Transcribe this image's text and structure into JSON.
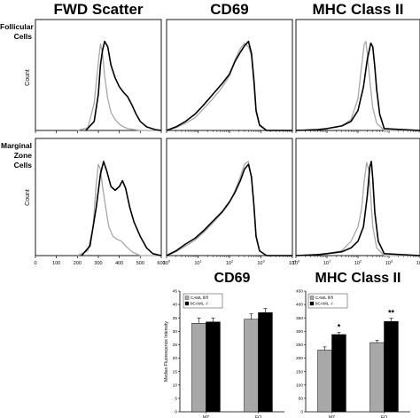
{
  "columns": [
    "FWD Scatter",
    "CD69",
    "MHC Class II"
  ],
  "rows": [
    {
      "label_lines": [
        "Follicular",
        "Cells"
      ]
    },
    {
      "label_lines": [
        "Marginal",
        "Zone",
        "Cells"
      ]
    }
  ],
  "count_label": "Count",
  "bar_titles": [
    "CD69",
    "MHC Class II"
  ],
  "colors": {
    "wt": "#a8a8a8",
    "ko": "#000000"
  },
  "chart_data": [
    {
      "type": "line",
      "panel": "follicular-fwd",
      "x_scale": "linear",
      "xlim": [
        0,
        600
      ],
      "x_ticks": [
        "0",
        "100",
        "200",
        "300",
        "400",
        "500",
        "600"
      ],
      "series": [
        {
          "color": "#a8a8a8",
          "x": [
            200,
            250,
            280,
            300,
            310,
            320,
            330,
            345,
            360,
            380,
            400,
            420,
            440,
            470,
            500,
            600
          ],
          "y": [
            0,
            0.03,
            0.3,
            0.75,
            0.95,
            0.85,
            0.6,
            0.35,
            0.2,
            0.12,
            0.07,
            0.04,
            0.02,
            0.01,
            0,
            0
          ]
        },
        {
          "color": "#000000",
          "x": [
            240,
            280,
            300,
            310,
            320,
            330,
            345,
            360,
            380,
            400,
            420,
            440,
            460,
            480,
            500,
            530,
            570,
            600
          ],
          "y": [
            0,
            0.1,
            0.4,
            0.72,
            0.88,
            0.98,
            0.92,
            0.72,
            0.58,
            0.48,
            0.42,
            0.37,
            0.28,
            0.18,
            0.1,
            0.04,
            0.01,
            0
          ]
        }
      ]
    },
    {
      "type": "line",
      "panel": "follicular-cd69",
      "x_scale": "log",
      "xlim": [
        1,
        10000
      ],
      "x_ticks": [
        "10^0",
        "10^1",
        "10^2",
        "10^3",
        "10^4"
      ],
      "series": [
        {
          "color": "#a8a8a8",
          "x": [
            1,
            2,
            4,
            8,
            15,
            30,
            60,
            100,
            150,
            220,
            300,
            400,
            500,
            600,
            700,
            900,
            1500,
            10000
          ],
          "y": [
            0,
            0.03,
            0.08,
            0.14,
            0.24,
            0.35,
            0.48,
            0.6,
            0.78,
            0.9,
            0.96,
            0.92,
            0.82,
            0.5,
            0.2,
            0.05,
            0,
            0
          ]
        },
        {
          "color": "#000000",
          "x": [
            1,
            2,
            4,
            8,
            15,
            30,
            60,
            100,
            150,
            220,
            300,
            400,
            500,
            600,
            700,
            900,
            1500,
            10000
          ],
          "y": [
            0,
            0.04,
            0.1,
            0.18,
            0.28,
            0.4,
            0.52,
            0.62,
            0.76,
            0.86,
            0.93,
            0.98,
            0.85,
            0.55,
            0.22,
            0.06,
            0,
            0
          ]
        }
      ]
    },
    {
      "type": "line",
      "panel": "follicular-mhc",
      "x_scale": "log",
      "xlim": [
        1,
        10000
      ],
      "x_ticks": [
        "10^0",
        "10^1",
        "10^2",
        "10^3",
        "10^4"
      ],
      "series": [
        {
          "color": "#a8a8a8",
          "x": [
            1,
            5,
            10,
            30,
            60,
            100,
            130,
            160,
            180,
            200,
            250,
            300,
            400,
            700,
            10000
          ],
          "y": [
            0,
            0.01,
            0.02,
            0.05,
            0.12,
            0.35,
            0.7,
            0.95,
            0.98,
            0.85,
            0.5,
            0.25,
            0.08,
            0,
            0
          ]
        },
        {
          "color": "#000000",
          "x": [
            1,
            5,
            10,
            30,
            60,
            100,
            150,
            200,
            260,
            300,
            350,
            400,
            500,
            700,
            10000
          ],
          "y": [
            0,
            0.01,
            0.02,
            0.05,
            0.1,
            0.22,
            0.48,
            0.78,
            0.96,
            0.92,
            0.7,
            0.45,
            0.18,
            0.02,
            0
          ]
        }
      ]
    },
    {
      "type": "line",
      "panel": "mz-fwd",
      "x_scale": "linear",
      "xlim": [
        0,
        600
      ],
      "x_ticks": [
        "0",
        "100",
        "200",
        "300",
        "400",
        "500",
        "600"
      ],
      "series": [
        {
          "color": "#a8a8a8",
          "x": [
            200,
            250,
            275,
            290,
            300,
            310,
            320,
            335,
            350,
            370,
            390,
            410,
            430,
            460,
            500,
            600
          ],
          "y": [
            0,
            0.05,
            0.3,
            0.75,
            0.95,
            0.9,
            0.72,
            0.5,
            0.3,
            0.2,
            0.17,
            0.15,
            0.1,
            0.04,
            0,
            0
          ]
        },
        {
          "color": "#000000",
          "x": [
            220,
            260,
            290,
            310,
            325,
            340,
            360,
            380,
            400,
            415,
            430,
            450,
            470,
            500,
            530,
            560,
            600
          ],
          "y": [
            0,
            0.1,
            0.5,
            0.85,
            0.98,
            0.88,
            0.72,
            0.68,
            0.72,
            0.78,
            0.7,
            0.5,
            0.35,
            0.2,
            0.08,
            0.02,
            0
          ]
        }
      ]
    },
    {
      "type": "line",
      "panel": "mz-cd69",
      "x_scale": "log",
      "xlim": [
        1,
        10000
      ],
      "x_ticks": [
        "10^0",
        "10^1",
        "10^2",
        "10^3",
        "10^4"
      ],
      "series": [
        {
          "color": "#a8a8a8",
          "x": [
            1,
            2,
            4,
            8,
            15,
            30,
            60,
            100,
            150,
            220,
            300,
            400,
            500,
            600,
            700,
            900,
            1500,
            10000
          ],
          "y": [
            0,
            0.04,
            0.1,
            0.16,
            0.24,
            0.34,
            0.45,
            0.55,
            0.68,
            0.82,
            0.95,
            0.98,
            0.8,
            0.5,
            0.2,
            0.05,
            0,
            0
          ]
        },
        {
          "color": "#000000",
          "x": [
            1,
            2,
            4,
            8,
            15,
            30,
            60,
            100,
            150,
            220,
            300,
            400,
            500,
            600,
            700,
            900,
            1500,
            10000
          ],
          "y": [
            0,
            0.05,
            0.12,
            0.18,
            0.26,
            0.36,
            0.46,
            0.56,
            0.66,
            0.78,
            0.9,
            0.95,
            0.82,
            0.52,
            0.2,
            0.05,
            0,
            0
          ]
        }
      ]
    },
    {
      "type": "line",
      "panel": "mz-mhc",
      "x_scale": "log",
      "xlim": [
        1,
        10000
      ],
      "x_ticks": [
        "10^0",
        "10^1",
        "10^2",
        "10^3",
        "10^4"
      ],
      "series": [
        {
          "color": "#a8a8a8",
          "x": [
            1,
            5,
            10,
            30,
            60,
            100,
            130,
            160,
            190,
            220,
            260,
            300,
            400,
            700,
            10000
          ],
          "y": [
            0,
            0.01,
            0.02,
            0.05,
            0.15,
            0.3,
            0.48,
            0.78,
            0.97,
            0.9,
            0.6,
            0.3,
            0.08,
            0,
            0
          ]
        },
        {
          "color": "#000000",
          "x": [
            1,
            5,
            10,
            30,
            60,
            100,
            150,
            200,
            240,
            270,
            300,
            350,
            450,
            700,
            10000
          ],
          "y": [
            0,
            0.01,
            0.02,
            0.04,
            0.08,
            0.15,
            0.3,
            0.62,
            0.92,
            0.98,
            0.8,
            0.45,
            0.15,
            0.02,
            0
          ]
        }
      ]
    },
    {
      "type": "bar",
      "panel": "cd69-bar",
      "title": "CD69",
      "ylabel": "Median Fluorescence Intensity",
      "ylim": [
        0,
        45
      ],
      "y_ticks": [
        0,
        5,
        10,
        15,
        20,
        25,
        30,
        35,
        40,
        45
      ],
      "categories": [
        "MZ",
        "FO"
      ],
      "series": [
        {
          "name": "CAML fl/fl",
          "color": "#a8a8a8",
          "values": [
            33,
            34.5
          ],
          "errors": [
            2,
            2
          ]
        },
        {
          "name": "bCAML -/-",
          "color": "#000000",
          "values": [
            33.5,
            37
          ],
          "errors": [
            1.5,
            1.5
          ]
        }
      ]
    },
    {
      "type": "bar",
      "panel": "mhc-bar",
      "title": "MHC Class II",
      "ylim": [
        0,
        450
      ],
      "y_ticks": [
        0,
        50,
        100,
        150,
        200,
        250,
        300,
        350,
        400,
        450
      ],
      "categories": [
        "MZ",
        "FO"
      ],
      "series": [
        {
          "name": "CAML fl/fl",
          "color": "#a8a8a8",
          "values": [
            230,
            258
          ],
          "errors": [
            12,
            8
          ]
        },
        {
          "name": "bCAML -/-",
          "color": "#000000",
          "values": [
            288,
            337
          ],
          "errors": [
            8,
            12
          ]
        }
      ],
      "annotations": [
        {
          "category": "MZ",
          "text": "*"
        },
        {
          "category": "FO",
          "text": "**"
        }
      ]
    }
  ]
}
